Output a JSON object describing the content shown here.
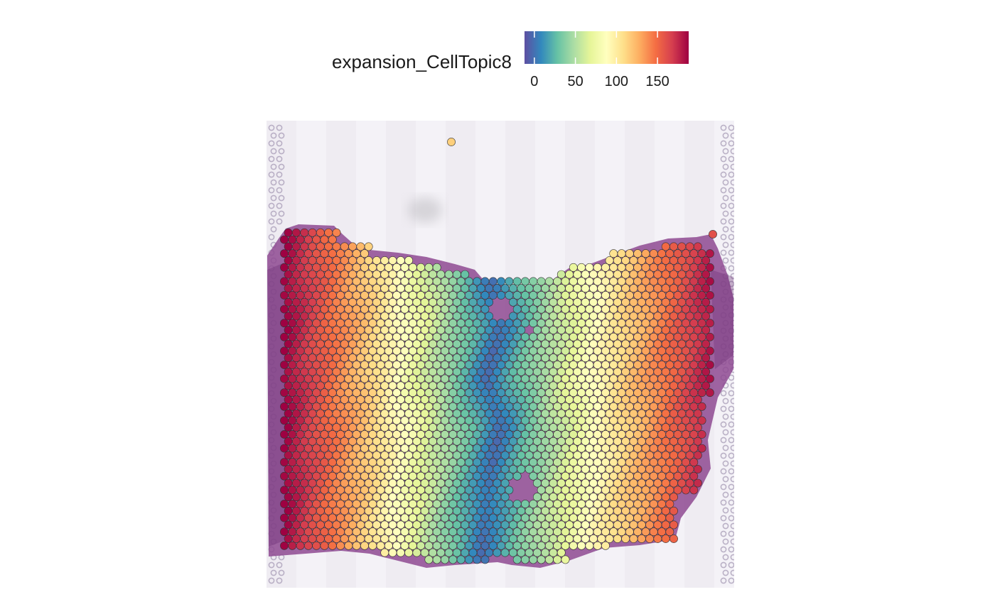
{
  "chart_data": {
    "type": "scatter",
    "subtype": "spatial spot map over tissue image",
    "title": "",
    "xlabel": "",
    "ylabel": "",
    "legend": {
      "title": "expansion_CellTopic8",
      "position": "top",
      "kind": "continuous colorbar",
      "ticks": [
        0,
        50,
        100,
        150
      ],
      "tick_labels": [
        "0",
        "50",
        "100",
        "150"
      ],
      "range": [
        -12,
        188
      ]
    },
    "color_scale": {
      "name": "Spectral (reversed)",
      "stops": [
        "#5e4fa2",
        "#3288bd",
        "#66c2a5",
        "#abdda4",
        "#e6f598",
        "#ffffbf",
        "#fee08b",
        "#fdae61",
        "#f46d43",
        "#d53e4f",
        "#9e0142"
      ]
    },
    "spot_value_model": {
      "description": "value rises with distance from a central ridge running top to bottom",
      "ridge_x": [
        [
          0,
          0.48
        ],
        [
          0.15,
          0.48
        ],
        [
          0.3,
          0.5
        ],
        [
          0.45,
          0.47
        ],
        [
          0.6,
          0.5
        ],
        [
          0.75,
          0.48
        ],
        [
          0.9,
          0.46
        ],
        [
          1,
          0.46
        ]
      ],
      "min_value": 0,
      "max_value": 185
    },
    "isolated_spots": [
      {
        "label": "upper stray spot",
        "value": 115
      },
      {
        "label": "right edge spot",
        "value": 160
      }
    ],
    "background": "H&E stained tissue section with fiducial spot frame"
  },
  "colors": {
    "tissue": "#8a3f8e",
    "slide": "#f3f1f6",
    "spot_stroke": "#333333"
  }
}
